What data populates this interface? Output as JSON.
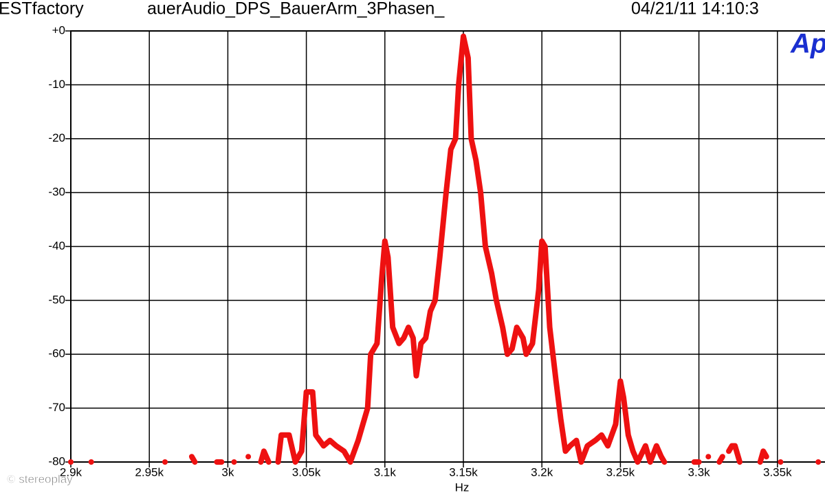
{
  "header": {
    "left": "ESTfactory",
    "middle": "auerAudio_DPS_BauerArm_3Phasen_",
    "right": "04/21/11 14:10:3",
    "logo": "Ap"
  },
  "watermark": "© stereoplay",
  "chart_data": {
    "type": "line",
    "x_label": "Hz",
    "xlim": [
      2.9,
      3.4
    ],
    "ylim": [
      -80,
      0
    ],
    "xticks": [
      {
        "value": 2.9,
        "label": "2.9k"
      },
      {
        "value": 2.95,
        "label": "2.95k"
      },
      {
        "value": 3.0,
        "label": "3k"
      },
      {
        "value": 3.05,
        "label": "3.05k"
      },
      {
        "value": 3.1,
        "label": "3.1k"
      },
      {
        "value": 3.15,
        "label": "3.15k"
      },
      {
        "value": 3.2,
        "label": "3.2k"
      },
      {
        "value": 3.25,
        "label": "3.25k"
      },
      {
        "value": 3.3,
        "label": "3.3k"
      },
      {
        "value": 3.35,
        "label": "3.35k"
      }
    ],
    "yticks": [
      {
        "value": 0,
        "label": "+0"
      },
      -10,
      -20,
      -30,
      -40,
      -50,
      -60,
      -70,
      -80
    ],
    "grid": true,
    "series": [
      {
        "color": "#ee1111",
        "x": [
          2.9,
          null,
          2.913,
          null,
          2.96,
          null,
          2.977,
          2.979,
          null,
          2.993,
          2.996,
          null,
          3.004,
          null,
          3.013,
          null,
          3.021,
          3.023,
          3.026,
          null,
          3.032,
          3.034,
          3.039,
          3.043,
          3.047,
          3.05,
          3.054,
          3.056,
          3.061,
          3.065,
          3.069,
          3.074,
          3.078,
          3.083,
          3.086,
          3.089,
          3.091,
          3.095,
          3.098,
          3.1,
          3.102,
          3.105,
          3.109,
          3.112,
          3.115,
          3.118,
          3.12,
          3.123,
          3.126,
          3.129,
          3.132,
          3.135,
          3.139,
          3.142,
          3.145,
          3.147,
          3.15,
          3.153,
          3.155,
          3.158,
          3.161,
          3.164,
          3.168,
          3.171,
          3.175,
          3.178,
          3.181,
          3.184,
          3.188,
          3.19,
          3.194,
          3.198,
          3.2,
          3.202,
          3.205,
          3.209,
          3.212,
          3.215,
          3.218,
          3.222,
          3.225,
          3.229,
          3.234,
          3.238,
          3.242,
          3.247,
          3.25,
          3.252,
          3.255,
          3.258,
          3.261,
          3.266,
          3.269,
          3.273,
          3.276,
          3.278,
          null,
          3.297,
          3.3,
          null,
          3.306,
          null,
          3.313,
          3.315,
          null,
          3.319,
          3.321,
          3.323,
          3.326,
          null,
          3.339,
          3.341,
          3.343,
          null,
          3.352,
          null,
          3.376
        ],
        "values": [
          -80,
          null,
          -80,
          null,
          -80,
          null,
          -79,
          -80,
          null,
          -80,
          -80,
          null,
          -80,
          null,
          -79,
          null,
          -80,
          -78,
          -80,
          null,
          -80,
          -75,
          -75,
          -80,
          -78,
          -67,
          -67,
          -75,
          -77,
          -76,
          -77,
          -78,
          -80,
          -76,
          -73,
          -70,
          -60,
          -58,
          -46,
          -39,
          -42,
          -55,
          -58,
          -57,
          -55,
          -57,
          -64,
          -58,
          -57,
          -52,
          -50,
          -42,
          -30,
          -22,
          -20,
          -10,
          -1,
          -5,
          -20,
          -24,
          -30,
          -40,
          -45,
          -50,
          -55,
          -60,
          -59,
          -55,
          -57,
          -60,
          -58,
          -48,
          -39,
          -40,
          -55,
          -65,
          -72,
          -78,
          -77,
          -76,
          -80,
          -77,
          -76,
          -75,
          -77,
          -73,
          -65,
          -68,
          -75,
          -78,
          -80,
          -77,
          -80,
          -77,
          -79,
          -80,
          null,
          -80,
          -80,
          null,
          -79,
          null,
          -80,
          -79,
          null,
          -78,
          -77,
          -77,
          -80,
          null,
          -80,
          -78,
          -79,
          null,
          -80,
          null,
          -80
        ]
      }
    ]
  }
}
